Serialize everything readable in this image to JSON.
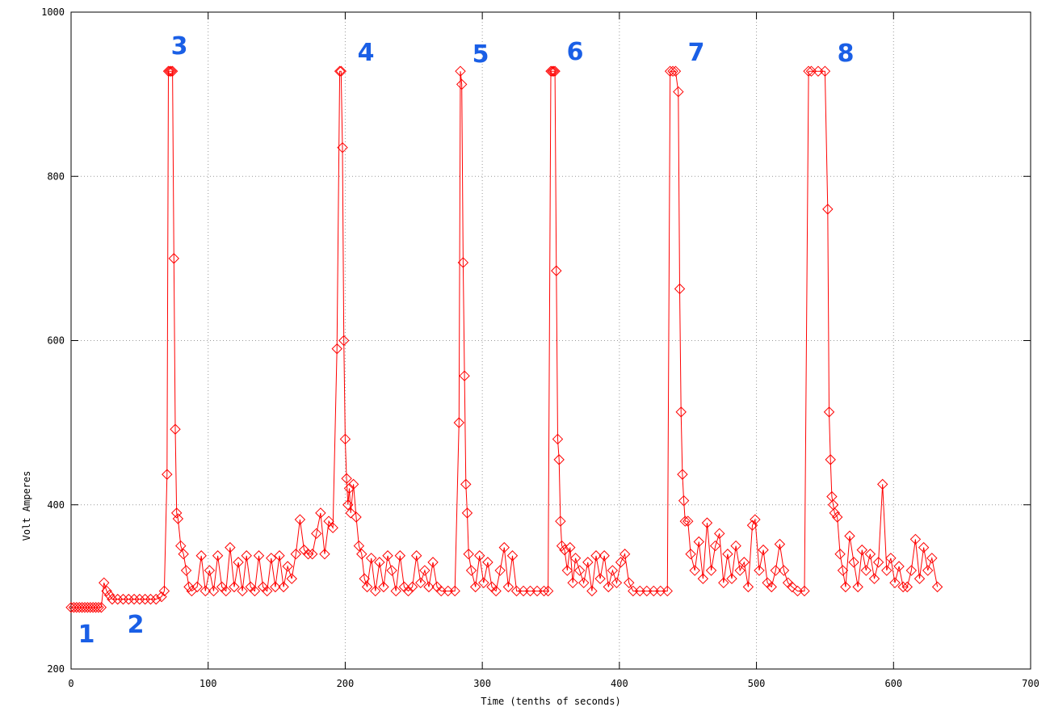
{
  "chart_data": {
    "type": "line",
    "xlabel": "Time (tenths of seconds)",
    "ylabel": "Volt Amperes",
    "xlim": [
      0,
      700
    ],
    "xticks": [
      0,
      100,
      200,
      300,
      400,
      500,
      600,
      700
    ],
    "ylim": [
      200,
      1000
    ],
    "yticks": [
      200,
      400,
      600,
      800,
      1000
    ],
    "grid": true,
    "x": [
      0,
      2,
      4,
      6,
      8,
      10,
      12,
      14,
      16,
      18,
      20,
      22,
      24,
      26,
      28,
      30,
      34,
      38,
      42,
      46,
      50,
      54,
      58,
      62,
      66,
      68,
      70,
      71,
      72,
      73,
      74,
      75,
      76,
      77,
      78,
      80,
      82,
      84,
      86,
      88,
      92,
      95,
      98,
      101,
      104,
      107,
      110,
      113,
      116,
      119,
      122,
      125,
      128,
      131,
      134,
      137,
      140,
      143,
      146,
      149,
      152,
      155,
      158,
      161,
      164,
      167,
      170,
      173,
      176,
      179,
      182,
      185,
      188,
      191,
      194,
      196,
      197,
      198,
      199,
      200,
      201,
      202,
      203,
      204,
      206,
      208,
      210,
      212,
      214,
      216,
      219,
      222,
      225,
      228,
      231,
      234,
      237,
      240,
      243,
      246,
      249,
      252,
      255,
      258,
      261,
      264,
      267,
      270,
      275,
      280,
      283,
      284,
      285,
      286,
      287,
      288,
      289,
      290,
      292,
      295,
      298,
      301,
      304,
      307,
      310,
      313,
      316,
      319,
      322,
      325,
      330,
      335,
      340,
      345,
      348,
      350,
      351,
      352,
      353,
      354,
      355,
      356,
      357,
      358,
      360,
      362,
      364,
      366,
      368,
      371,
      374,
      377,
      380,
      383,
      386,
      389,
      392,
      395,
      398,
      401,
      404,
      407,
      410,
      415,
      420,
      425,
      430,
      435,
      437,
      439,
      441,
      443,
      444,
      445,
      446,
      447,
      448,
      450,
      452,
      455,
      458,
      461,
      464,
      467,
      470,
      473,
      476,
      479,
      482,
      485,
      488,
      491,
      494,
      497,
      499,
      502,
      505,
      508,
      511,
      514,
      517,
      520,
      523,
      526,
      530,
      535,
      538,
      540,
      545,
      550,
      552,
      553,
      554,
      555,
      556,
      557,
      559,
      561,
      563,
      565,
      568,
      571,
      574,
      577,
      580,
      583,
      586,
      589,
      592,
      595,
      598,
      601,
      604,
      607,
      610,
      613,
      616,
      619,
      622,
      625,
      628,
      632
    ],
    "series": [
      {
        "color": "#ff0000",
        "values": [
          275,
          275,
          275,
          275,
          275,
          275,
          275,
          275,
          275,
          275,
          275,
          275,
          305,
          295,
          290,
          285,
          285,
          285,
          285,
          285,
          285,
          285,
          285,
          285,
          288,
          295,
          437,
          928,
          928,
          928,
          928,
          700,
          492,
          390,
          383,
          350,
          340,
          320,
          300,
          295,
          300,
          338,
          295,
          320,
          295,
          338,
          300,
          295,
          348,
          300,
          330,
          295,
          338,
          300,
          295,
          338,
          300,
          295,
          335,
          300,
          338,
          300,
          325,
          310,
          340,
          382,
          345,
          340,
          340,
          365,
          390,
          340,
          380,
          372,
          590,
          928,
          928,
          835,
          600,
          480,
          432,
          400,
          420,
          390,
          425,
          385,
          350,
          340,
          310,
          300,
          335,
          295,
          330,
          300,
          338,
          320,
          295,
          338,
          300,
          295,
          300,
          338,
          305,
          320,
          300,
          330,
          300,
          295,
          295,
          295,
          500,
          928,
          912,
          695,
          557,
          425,
          390,
          340,
          320,
          300,
          338,
          305,
          330,
          300,
          295,
          320,
          348,
          300,
          338,
          295,
          295,
          295,
          295,
          295,
          295,
          928,
          928,
          928,
          928,
          685,
          480,
          455,
          380,
          350,
          345,
          320,
          348,
          305,
          335,
          320,
          305,
          330,
          295,
          338,
          310,
          338,
          300,
          320,
          305,
          330,
          340,
          305,
          295,
          295,
          295,
          295,
          295,
          295,
          928,
          928,
          928,
          903,
          663,
          513,
          437,
          405,
          380,
          380,
          340,
          320,
          355,
          310,
          378,
          320,
          350,
          365,
          305,
          340,
          310,
          350,
          320,
          330,
          300,
          375,
          382,
          320,
          345,
          305,
          300,
          320,
          352,
          320,
          305,
          300,
          295,
          295,
          928,
          928,
          928,
          928,
          760,
          513,
          455,
          410,
          400,
          390,
          385,
          340,
          320,
          300,
          362,
          330,
          300,
          345,
          320,
          340,
          310,
          330,
          425,
          320,
          335,
          305,
          325,
          300,
          300,
          320,
          358,
          310,
          348,
          320,
          335,
          300
        ]
      }
    ],
    "annotations": [
      "1",
      "2",
      "3",
      "4",
      "5",
      "6",
      "7",
      "8"
    ]
  }
}
